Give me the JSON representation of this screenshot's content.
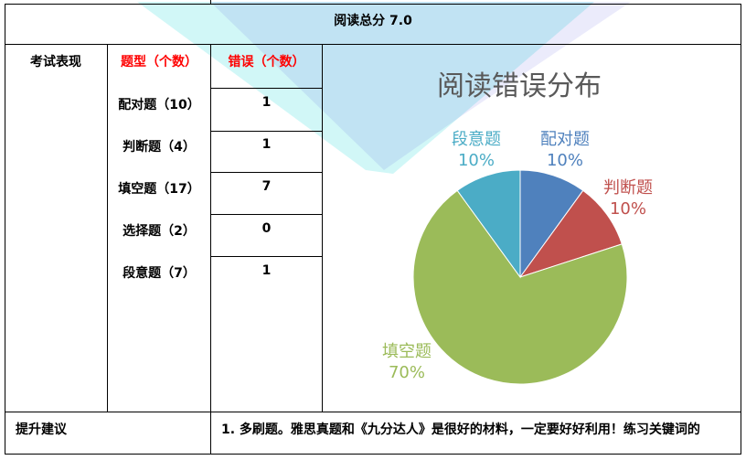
{
  "summary": {
    "reading_total": "阅读总分 7.0"
  },
  "performance": {
    "row_label": "考试表现",
    "header_type": "题型（个数）",
    "header_errors": "错误（个数）",
    "rows": [
      {
        "type": "配对题（10）",
        "errors": "1"
      },
      {
        "type": "判断题（4）",
        "errors": "1"
      },
      {
        "type": "填空题（17）",
        "errors": "7"
      },
      {
        "type": "选择题（2）",
        "errors": "0"
      },
      {
        "type": "段意题（7）",
        "errors": "1"
      }
    ]
  },
  "advice": {
    "label": "提升建议",
    "text": "1. 多刷题。雅思真题和《九分达人》是很好的材料，一定要好好利用！练习关键词的"
  },
  "chart_data": {
    "type": "pie",
    "title": "阅读错误分布",
    "slices": [
      {
        "name": "配对题",
        "label": "10%",
        "value": 10,
        "color": "#4f81bd"
      },
      {
        "name": "判断题",
        "label": "10%",
        "value": 10,
        "color": "#c0504d"
      },
      {
        "name": "填空题",
        "label": "70%",
        "value": 70,
        "color": "#9bbb59"
      },
      {
        "name": "段意题",
        "label": "10%",
        "value": 10,
        "color": "#4bacc6"
      }
    ]
  }
}
